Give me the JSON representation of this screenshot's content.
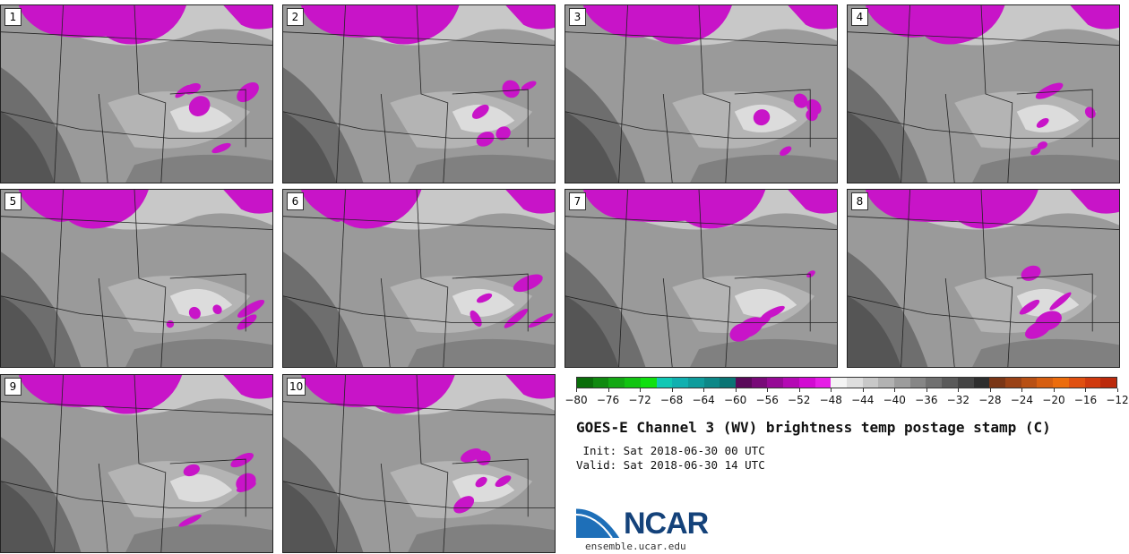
{
  "panels": [
    {
      "label": "1"
    },
    {
      "label": "2"
    },
    {
      "label": "3"
    },
    {
      "label": "4"
    },
    {
      "label": "5"
    },
    {
      "label": "6"
    },
    {
      "label": "7"
    },
    {
      "label": "8"
    },
    {
      "label": "9"
    },
    {
      "label": "10"
    }
  ],
  "colorbar": {
    "tick_labels": [
      "−80",
      "−76",
      "−72",
      "−68",
      "−64",
      "−60",
      "−56",
      "−52",
      "−48",
      "−44",
      "−40",
      "−36",
      "−32",
      "−28",
      "−24",
      "−20",
      "−16",
      "−12"
    ],
    "colors": [
      "#0a6e0a",
      "#108a10",
      "#14a814",
      "#12c412",
      "#10e010",
      "#10c8b4",
      "#10b0b0",
      "#0e9c9c",
      "#0c8888",
      "#0a7474",
      "#5a0a5a",
      "#780a78",
      "#960a96",
      "#b40ab4",
      "#d20ad2",
      "#e61ee6",
      "#f4f4f4",
      "#dedede",
      "#c8c8c8",
      "#b2b2b2",
      "#9c9c9c",
      "#868686",
      "#707070",
      "#5a5a5a",
      "#444444",
      "#2e2e2e",
      "#7a3616",
      "#9a4216",
      "#b85014",
      "#d65e10",
      "#ec6c0c",
      "#e05010",
      "#d03a0e",
      "#bc2a0c"
    ],
    "accent_magenta": "#c814c8"
  },
  "title": "GOES-E Channel 3 (WV) brightness temp postage stamp (C)",
  "init_line": " Init: Sat 2018-06-30 00 UTC",
  "valid_line": "Valid: Sat 2018-06-30 14 UTC",
  "logo": {
    "text": "NCAR",
    "url": "ensemble.ucar.edu"
  }
}
